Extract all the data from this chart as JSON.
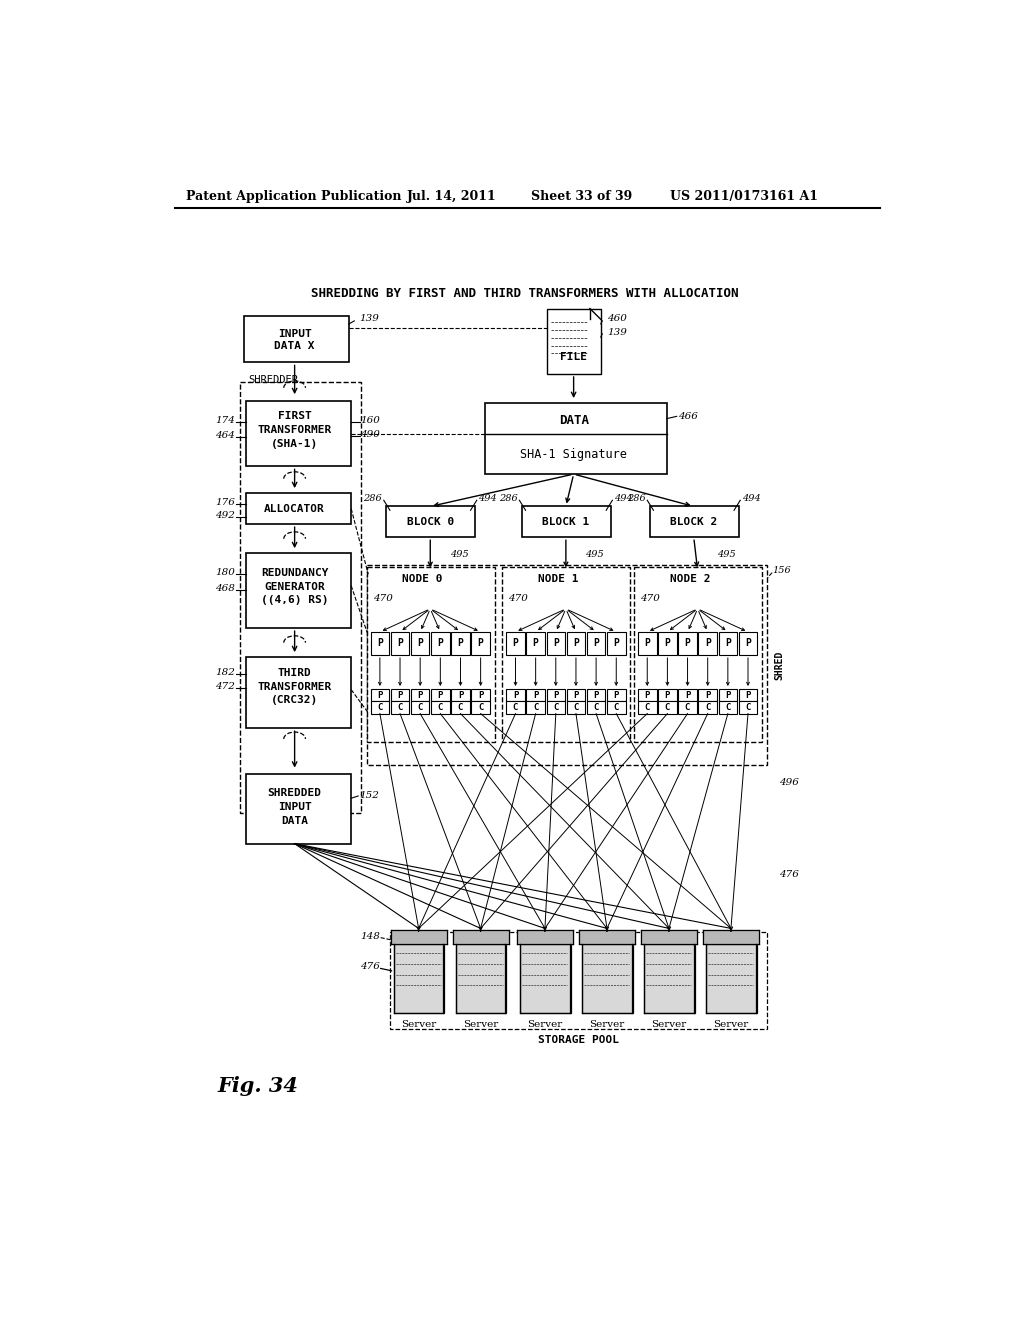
{
  "bg_color": "#ffffff",
  "title_header": "Patent Application Publication",
  "title_date": "Jul. 14, 2011",
  "title_sheet": "Sheet 33 of 39",
  "title_patent": "US 2011/0173161 A1",
  "diagram_title": "SHREDDING BY FIRST AND THIRD TRANSFORMERS WITH ALLOCATION",
  "fig_label": "Fig. 34"
}
